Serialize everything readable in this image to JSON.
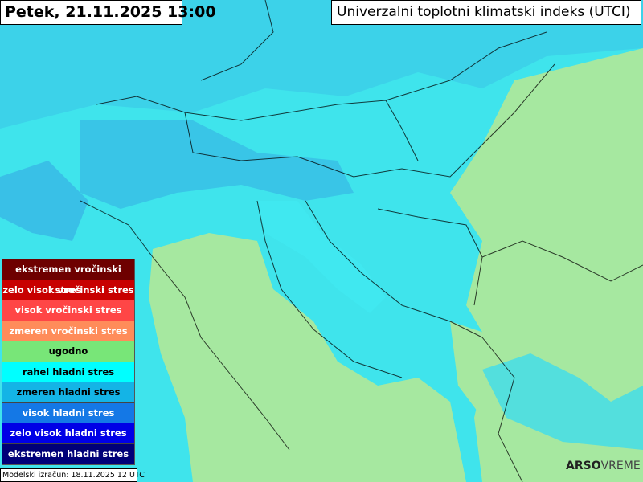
{
  "header": {
    "title": "Petek, 21.11.2025 13:00",
    "subtitle": "Univerzalni toplotni klimatski indeks (UTCI)"
  },
  "legend": {
    "items": [
      {
        "label": "ekstremen vročinski stres",
        "color": "#6e0000"
      },
      {
        "label": "zelo visok vročinski stres",
        "color": "#c80000"
      },
      {
        "label": "visok vročinski stres",
        "color": "#ff4646"
      },
      {
        "label": "zmeren vročinski stres",
        "color": "#ff8c5a"
      },
      {
        "label": "ugodno",
        "color": "#78e678"
      },
      {
        "label": "rahel hladni stres",
        "color": "#00ffff"
      },
      {
        "label": "zmeren hladni stres",
        "color": "#14b4e6"
      },
      {
        "label": "visok hladni stres",
        "color": "#1478e6"
      },
      {
        "label": "zelo visok hladni stres",
        "color": "#0000e6"
      },
      {
        "label": "ekstremen hladni stres",
        "color": "#000078"
      }
    ]
  },
  "footer": {
    "model_run": "Modelski izračun: 18.11.2025 12 UTC"
  },
  "logo": {
    "bold": "ARSO",
    "light": "VREME"
  }
}
